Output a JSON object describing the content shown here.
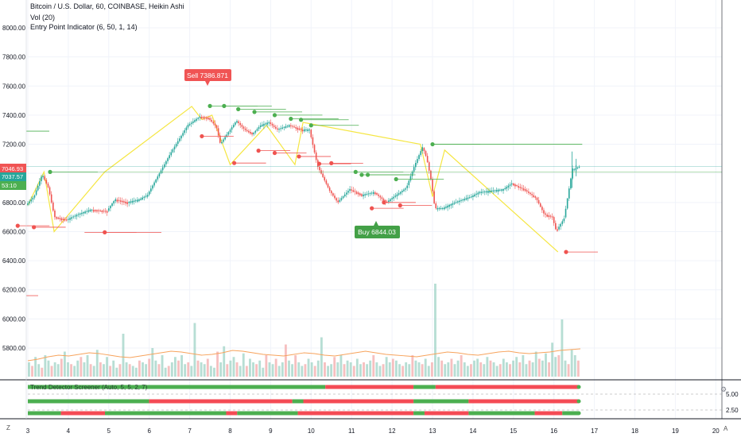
{
  "header": {
    "title": "Bitcoin / U.S. Dollar, 60, COINBASE, Heikin Ashi",
    "indicators": [
      "Vol (20)",
      "Entry Point Indicator (6, 50, 1, 14)"
    ]
  },
  "price_axis": {
    "ticks": [
      "8000.00",
      "7800.00",
      "7600.00",
      "7400.00",
      "7200.00",
      "7000.00",
      "6800.00",
      "6600.00",
      "6400.00",
      "6200.00",
      "6000.00",
      "5800.00"
    ],
    "current_price_label": "7046.93",
    "second_price_label": "7037.57",
    "countdown_label": "53:10"
  },
  "panel_axis": {
    "ticks": [
      "5.00",
      "2.50"
    ]
  },
  "time_axis": {
    "ticks": [
      "3",
      "4",
      "5",
      "6",
      "7",
      "8",
      "9",
      "10",
      "11",
      "12",
      "13",
      "14",
      "15",
      "16",
      "17",
      "18",
      "19",
      "20"
    ]
  },
  "signals": {
    "sell_label": "Sell 7386.871",
    "buy_label": "Buy 6844.03"
  },
  "screener_title": "Trend Detector Screener (Auto, 5, 5, 2, 7)",
  "corner": {
    "gear": "⚙",
    "zoom": "Z",
    "auto": "A"
  },
  "colors": {
    "up": "#26a69a",
    "down": "#ef5350",
    "zigzag": "#f5e642",
    "sell": "#f05454",
    "buy": "#43a047",
    "bar_green": "#4caf50",
    "bar_red": "#f44b55"
  },
  "chart_data": {
    "type": "candlestick",
    "title": "Bitcoin / U.S. Dollar, 60, COINBASE, Heikin Ashi",
    "ylim": [
      5700,
      8080
    ],
    "x_ticks": [
      3,
      4,
      5,
      6,
      7,
      8,
      9,
      10,
      11,
      12,
      13,
      14,
      15,
      16,
      17,
      18,
      19,
      20
    ],
    "price_path": [
      [
        3.0,
        6780
      ],
      [
        3.2,
        6840
      ],
      [
        3.4,
        6990
      ],
      [
        3.55,
        6900
      ],
      [
        3.7,
        6700
      ],
      [
        4.0,
        6680
      ],
      [
        4.3,
        6720
      ],
      [
        4.6,
        6750
      ],
      [
        5.0,
        6740
      ],
      [
        5.2,
        6820
      ],
      [
        5.5,
        6800
      ],
      [
        5.8,
        6820
      ],
      [
        6.0,
        6850
      ],
      [
        6.3,
        7000
      ],
      [
        6.6,
        7150
      ],
      [
        7.0,
        7330
      ],
      [
        7.3,
        7390
      ],
      [
        7.5,
        7380
      ],
      [
        7.7,
        7320
      ],
      [
        7.8,
        7200
      ],
      [
        8.0,
        7280
      ],
      [
        8.2,
        7360
      ],
      [
        8.4,
        7300
      ],
      [
        8.6,
        7270
      ],
      [
        8.8,
        7330
      ],
      [
        9.0,
        7350
      ],
      [
        9.2,
        7300
      ],
      [
        9.5,
        7330
      ],
      [
        9.8,
        7300
      ],
      [
        10.0,
        7300
      ],
      [
        10.2,
        7050
      ],
      [
        10.5,
        6880
      ],
      [
        10.7,
        6800
      ],
      [
        11.0,
        6890
      ],
      [
        11.3,
        6850
      ],
      [
        11.6,
        6870
      ],
      [
        11.9,
        6800
      ],
      [
        12.0,
        6820
      ],
      [
        12.2,
        6860
      ],
      [
        12.4,
        6900
      ],
      [
        12.6,
        7050
      ],
      [
        12.8,
        7180
      ],
      [
        12.9,
        7100
      ],
      [
        13.0,
        6960
      ],
      [
        13.1,
        6760
      ],
      [
        13.3,
        6760
      ],
      [
        13.6,
        6800
      ],
      [
        13.8,
        6820
      ],
      [
        14.0,
        6840
      ],
      [
        14.2,
        6870
      ],
      [
        14.5,
        6880
      ],
      [
        14.8,
        6890
      ],
      [
        15.0,
        6930
      ],
      [
        15.3,
        6890
      ],
      [
        15.6,
        6830
      ],
      [
        15.8,
        6720
      ],
      [
        16.0,
        6700
      ],
      [
        16.1,
        6600
      ],
      [
        16.3,
        6690
      ],
      [
        16.5,
        7020
      ],
      [
        16.7,
        7050
      ]
    ],
    "zigzag": [
      [
        3.0,
        6780
      ],
      [
        3.4,
        7010
      ],
      [
        3.65,
        6600
      ],
      [
        4.9,
        7010
      ],
      [
        7.05,
        7460
      ],
      [
        7.3,
        7370
      ],
      [
        7.55,
        7400
      ],
      [
        8.0,
        7060
      ],
      [
        8.9,
        7330
      ],
      [
        9.6,
        7060
      ],
      [
        9.8,
        7350
      ],
      [
        12.7,
        7200
      ],
      [
        13.0,
        6840
      ],
      [
        13.3,
        7160
      ],
      [
        16.1,
        6460
      ]
    ],
    "volume": {
      "values": [
        40,
        30,
        55,
        35,
        25,
        60,
        45,
        30,
        40,
        35,
        50,
        70,
        40,
        35,
        30,
        45,
        55,
        40,
        60,
        35,
        30,
        75,
        40,
        35,
        55,
        30,
        45,
        25,
        35,
        120,
        40,
        35,
        30,
        25,
        45,
        40,
        35,
        50,
        80,
        45,
        35,
        60,
        25,
        30,
        40,
        55,
        45,
        60,
        35,
        40,
        30,
        150,
        45,
        40,
        35,
        50,
        30,
        25,
        70,
        40,
        85,
        35,
        45,
        55,
        40,
        30,
        65,
        30,
        50,
        40,
        35,
        45,
        25,
        60,
        40,
        35,
        50,
        30,
        40,
        90,
        45,
        35,
        60,
        40,
        30,
        35,
        50,
        40,
        30,
        45,
        110,
        40,
        30,
        35,
        55,
        40,
        60,
        35,
        45,
        40,
        30,
        50,
        35,
        40,
        35,
        45,
        60,
        40,
        30,
        35,
        55,
        40,
        50,
        45,
        35,
        30,
        40,
        35,
        60,
        45,
        40,
        35,
        50,
        30,
        40,
        260,
        55,
        45,
        35,
        40,
        50,
        35,
        45,
        60,
        40,
        30,
        35,
        45,
        50,
        40,
        35,
        55,
        45,
        40,
        30,
        35,
        50,
        40,
        35,
        45,
        55,
        40,
        60,
        35,
        45,
        40,
        70,
        50,
        45,
        65,
        40,
        95,
        55,
        60,
        160,
        45,
        35,
        75,
        60,
        45
      ],
      "ma": [
        20,
        22,
        25,
        27,
        26,
        28,
        30,
        29,
        27,
        25,
        24,
        26,
        28,
        30,
        32,
        31,
        29,
        27,
        28,
        30,
        33,
        32,
        30,
        28,
        27,
        26,
        28,
        30,
        29,
        27,
        26,
        28,
        30,
        32,
        30,
        28,
        27,
        26,
        25,
        27,
        29,
        31,
        30,
        28,
        27,
        29,
        31,
        32,
        30,
        29,
        30,
        31,
        33,
        34,
        35
      ]
    },
    "signals": [
      {
        "type": "sell",
        "x": 7.5,
        "price": 7386.871
      },
      {
        "type": "buy",
        "x": 11.7,
        "price": 6844.03
      }
    ],
    "entry_points": {
      "green": [
        [
          3.55,
          7010
        ],
        [
          7.5,
          7463
        ],
        [
          7.85,
          7463
        ],
        [
          8.2,
          7441
        ],
        [
          8.6,
          7422
        ],
        [
          9.1,
          7400
        ],
        [
          9.5,
          7375
        ],
        [
          9.75,
          7368
        ],
        [
          10.0,
          7330
        ],
        [
          11.1,
          7010
        ],
        [
          11.25,
          6990
        ],
        [
          11.4,
          6990
        ],
        [
          12.1,
          6960
        ],
        [
          13.0,
          7200
        ]
      ],
      "red": [
        [
          2.75,
          6640
        ],
        [
          3.15,
          6630
        ],
        [
          4.9,
          6595
        ],
        [
          7.3,
          7255
        ],
        [
          8.1,
          7071
        ],
        [
          8.7,
          7156
        ],
        [
          9.1,
          7140
        ],
        [
          9.7,
          7116
        ],
        [
          10.2,
          7066
        ],
        [
          10.5,
          7070
        ],
        [
          11.5,
          6760
        ],
        [
          11.8,
          6800
        ],
        [
          12.2,
          6780
        ],
        [
          16.3,
          6460
        ]
      ]
    },
    "screener": {
      "rows": [
        [
          [
            "g",
            0.0,
            0.54
          ],
          [
            "r",
            0.54,
            0.7
          ],
          [
            "g",
            0.7,
            0.74
          ],
          [
            "r",
            0.74,
            1.0
          ]
        ],
        [
          [
            "g",
            0.0,
            0.22
          ],
          [
            "r",
            0.22,
            0.48
          ],
          [
            "g",
            0.48,
            0.5
          ],
          [
            "r",
            0.5,
            0.7
          ],
          [
            "g",
            0.7,
            0.8
          ],
          [
            "r",
            0.8,
            1.0
          ]
        ],
        [
          [
            "g",
            0.0,
            0.06
          ],
          [
            "r",
            0.06,
            0.14
          ],
          [
            "g",
            0.14,
            0.36
          ],
          [
            "r",
            0.36,
            0.38
          ],
          [
            "g",
            0.38,
            0.49
          ],
          [
            "r",
            0.49,
            0.7
          ],
          [
            "g",
            0.7,
            0.72
          ],
          [
            "r",
            0.72,
            0.8
          ],
          [
            "g",
            0.8,
            0.92
          ],
          [
            "r",
            0.92,
            0.97
          ],
          [
            "g",
            0.97,
            1.0
          ]
        ]
      ]
    }
  }
}
